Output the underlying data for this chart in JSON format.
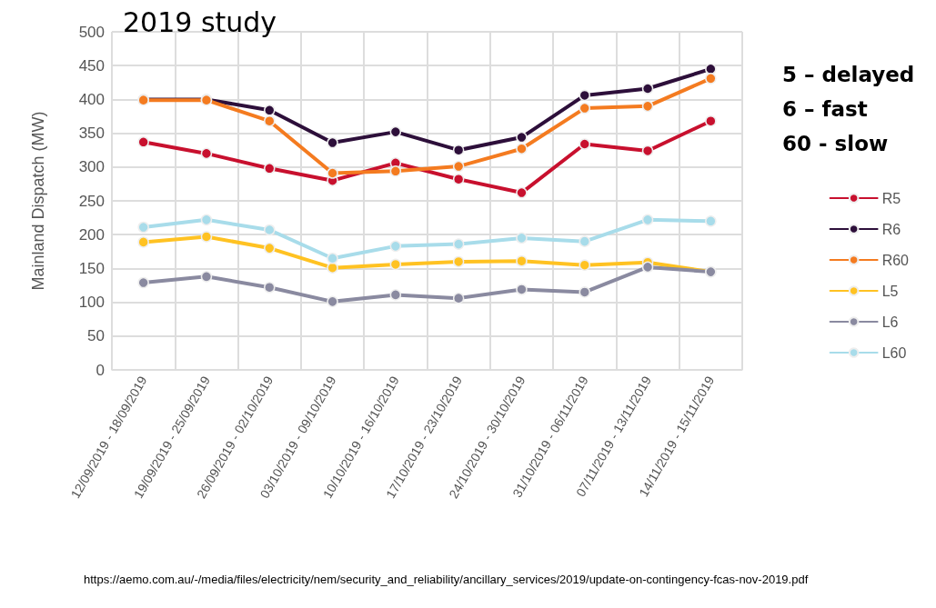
{
  "chart_data": {
    "type": "line",
    "title": "2019 study",
    "ylabel": "Mainland Dispatch (MW)",
    "categories": [
      "12/09/2019 - 18/09/2019",
      "19/09/2019 - 25/09/2019",
      "26/09/2019 - 02/10/2019",
      "03/10/2019 - 09/10/2019",
      "10/10/2019 - 16/10/2019",
      "17/10/2019 - 23/10/2019",
      "24/10/2019 - 30/10/2019",
      "31/10/2019 - 06/11/2019",
      "07/11/2019 - 13/11/2019",
      "14/11/2019 - 15/11/2019"
    ],
    "series": [
      {
        "name": "R5",
        "color": "#c8102e",
        "values": [
          337,
          320,
          298,
          280,
          306,
          282,
          262,
          334,
          324,
          368
        ]
      },
      {
        "name": "R6",
        "color": "#2d0f3a",
        "values": [
          400,
          400,
          384,
          336,
          352,
          325,
          344,
          406,
          416,
          445
        ]
      },
      {
        "name": "R60",
        "color": "#f47b20",
        "values": [
          399,
          399,
          368,
          291,
          294,
          301,
          327,
          387,
          390,
          431
        ]
      },
      {
        "name": "L5",
        "color": "#ffc222",
        "values": [
          189,
          197,
          180,
          151,
          156,
          160,
          161,
          155,
          159,
          145
        ]
      },
      {
        "name": "L6",
        "color": "#8a8aa0",
        "values": [
          129,
          138,
          122,
          101,
          111,
          106,
          119,
          115,
          152,
          145
        ]
      },
      {
        "name": "L60",
        "color": "#a8dcea",
        "values": [
          211,
          222,
          207,
          165,
          183,
          186,
          195,
          190,
          222,
          220
        ]
      }
    ],
    "ylim": [
      0,
      500
    ],
    "yticks": [
      0,
      50,
      100,
      150,
      200,
      250,
      300,
      350,
      400,
      450,
      500
    ],
    "grid": true,
    "legend": "right",
    "marker": "circle",
    "line_style": "solid",
    "annotations": [
      "5 – delayed",
      "6 – fast",
      "60 - slow",
      "https://aemo.com.au/-/media/files/electricity/nem/security_and_reliability/ancillary_services/2019/update-on-contingency-fcas-nov-2019.pdf"
    ]
  }
}
